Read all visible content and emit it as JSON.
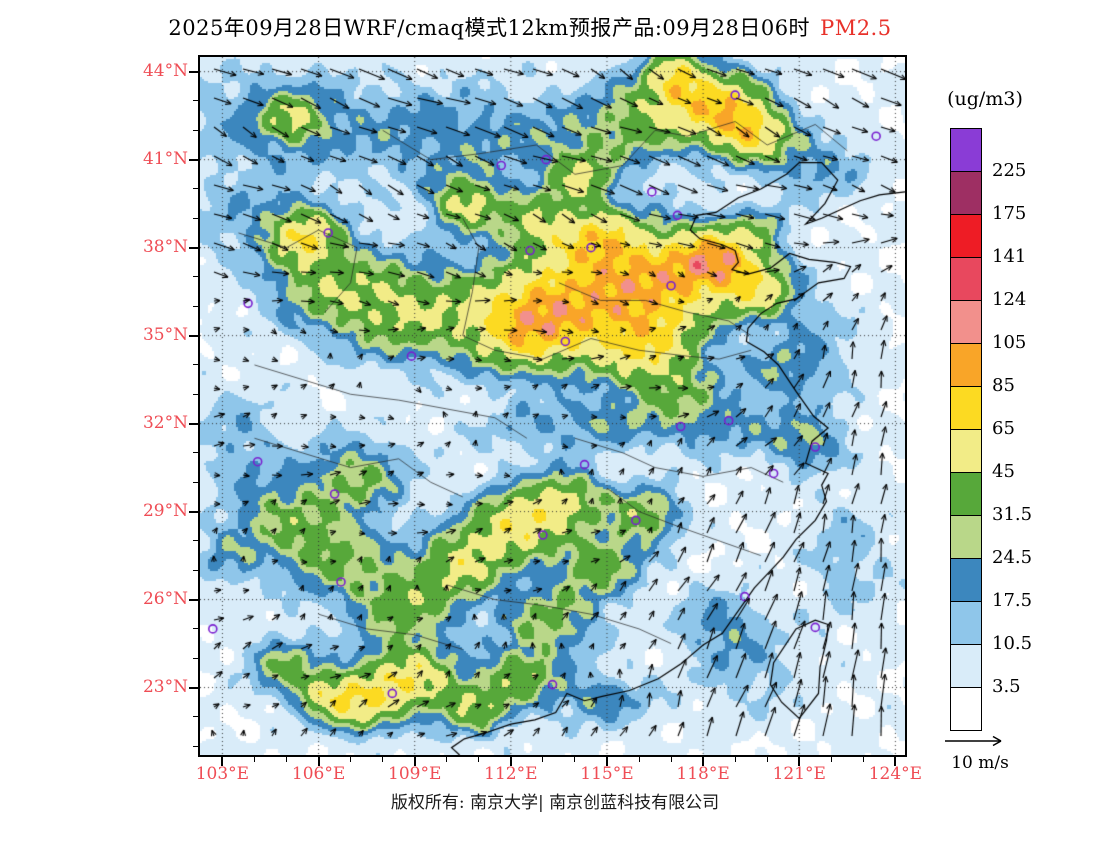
{
  "title": {
    "main": "2025年09月28日WRF/cmaq模式12km预报产品:09月28日06时",
    "pollutant": "PM2.5"
  },
  "colorbar": {
    "unit_label": "(ug/m3)",
    "boundary_labels": [
      "225",
      "175",
      "141",
      "124",
      "105",
      "85",
      "65",
      "45",
      "31.5",
      "24.5",
      "17.5",
      "10.5",
      "3.5"
    ]
  },
  "axes": {
    "lat_labels": [
      "44°N",
      "41°N",
      "38°N",
      "35°N",
      "32°N",
      "29°N",
      "26°N",
      "23°N"
    ],
    "lon_labels": [
      "103°E",
      "106°E",
      "109°E",
      "112°E",
      "115°E",
      "118°E",
      "121°E",
      "124°E"
    ]
  },
  "wind_legend": {
    "label": "10 m/s"
  },
  "footer": {
    "copyright": "版权所有: 南京大学| 南京创蓝科技有限公司"
  },
  "chart_data": {
    "type": "heatmap",
    "title": "2025年09月28日WRF/cmaq模式12km预报产品:09月28日06时 PM2.5",
    "variable": "PM2.5",
    "units": "ug/m3",
    "legend_position": "right",
    "grid": "dotted",
    "lon_range": [
      102.3,
      124.3
    ],
    "lat_range": [
      20.7,
      44.5
    ],
    "lon_tick_values": [
      103,
      106,
      109,
      112,
      115,
      118,
      121,
      124
    ],
    "lat_tick_values": [
      44,
      41,
      38,
      35,
      32,
      29,
      26,
      23
    ],
    "levels": [
      3.5,
      10.5,
      17.5,
      24.5,
      31.5,
      45,
      65,
      85,
      105,
      124,
      141,
      175,
      225
    ],
    "colors": [
      "#ffffff",
      "#d9ecf9",
      "#8fc6ea",
      "#3c87be",
      "#b9d789",
      "#57a83a",
      "#f2ec87",
      "#fcda22",
      "#f9a528",
      "#f2908c",
      "#e8485e",
      "#ee1c25",
      "#9e2f63",
      "#8a3cd6"
    ],
    "axis_label_color": "#ef4d55",
    "title_accent_color": "#e8312a",
    "marker_color": "#7a1fd0",
    "wind_reference_ms": 10,
    "pm25_sources": [
      [
        113.5,
        36.2,
        2.2,
        1.6,
        55
      ],
      [
        116.5,
        36.8,
        2.0,
        1.5,
        70
      ],
      [
        118.5,
        37.6,
        1.2,
        0.9,
        75
      ],
      [
        114.8,
        38.3,
        1.1,
        0.9,
        50
      ],
      [
        112.5,
        35.2,
        1.6,
        1.2,
        55
      ],
      [
        108.8,
        35.8,
        1.8,
        1.4,
        40
      ],
      [
        106.3,
        36.8,
        1.6,
        1.3,
        32
      ],
      [
        116.2,
        34.6,
        1.4,
        1.1,
        48
      ],
      [
        119.8,
        36.5,
        1.0,
        0.8,
        42
      ],
      [
        112.8,
        38.9,
        1.0,
        0.8,
        38
      ],
      [
        110.6,
        39.5,
        0.9,
        0.8,
        45
      ],
      [
        114.2,
        40.3,
        0.8,
        0.7,
        40
      ],
      [
        105.6,
        38.4,
        0.9,
        0.8,
        50
      ],
      [
        105.2,
        42.4,
        0.8,
        0.7,
        30
      ],
      [
        118.6,
        42.8,
        1.2,
        1.0,
        65
      ],
      [
        119.6,
        41.9,
        1.0,
        0.8,
        55
      ],
      [
        117.2,
        43.8,
        0.8,
        0.8,
        50
      ],
      [
        116.5,
        42.6,
        1.5,
        1.2,
        30
      ],
      [
        110.0,
        41.8,
        3.5,
        1.6,
        16
      ],
      [
        104.5,
        42.5,
        2.5,
        1.5,
        14
      ],
      [
        114.5,
        41.5,
        2.0,
        1.2,
        14
      ],
      [
        121.5,
        40.8,
        1.5,
        1.0,
        16
      ],
      [
        104.0,
        39.0,
        1.8,
        1.5,
        12
      ],
      [
        118.5,
        32.0,
        2.2,
        1.0,
        16
      ],
      [
        121.3,
        31.3,
        1.0,
        0.8,
        20
      ],
      [
        112.5,
        31.8,
        1.8,
        0.9,
        10
      ],
      [
        115.0,
        32.1,
        1.5,
        0.8,
        14
      ],
      [
        119.8,
        38.7,
        0.8,
        0.6,
        18
      ],
      [
        121.5,
        34.5,
        1.2,
        1.5,
        12
      ],
      [
        112.3,
        28.6,
        1.3,
        1.0,
        55
      ],
      [
        110.6,
        27.3,
        1.2,
        1.0,
        42
      ],
      [
        113.8,
        29.5,
        1.0,
        0.8,
        38
      ],
      [
        108.7,
        25.9,
        1.5,
        1.2,
        35
      ],
      [
        106.3,
        27.6,
        1.5,
        1.2,
        30
      ],
      [
        114.8,
        27.2,
        1.2,
        1.0,
        32
      ],
      [
        116.2,
        28.9,
        1.0,
        0.8,
        35
      ],
      [
        113.2,
        25.3,
        1.3,
        1.1,
        30
      ],
      [
        107.2,
        30.2,
        1.4,
        1.1,
        28
      ],
      [
        104.8,
        29.0,
        1.3,
        1.1,
        22
      ],
      [
        108.8,
        23.3,
        1.3,
        1.0,
        55
      ],
      [
        107.3,
        22.4,
        1.0,
        0.8,
        45
      ],
      [
        110.9,
        22.3,
        1.0,
        0.8,
        35
      ],
      [
        104.9,
        23.8,
        1.0,
        0.8,
        28
      ],
      [
        106.2,
        22.8,
        0.9,
        0.7,
        38
      ],
      [
        112.3,
        23.4,
        1.0,
        0.8,
        35
      ],
      [
        117.2,
        33.2,
        1.2,
        0.9,
        20
      ],
      [
        120.3,
        33.8,
        1.0,
        0.8,
        14
      ],
      [
        122.5,
        27.5,
        1.2,
        1.8,
        10
      ],
      [
        119.5,
        23.5,
        1.5,
        1.2,
        10
      ],
      [
        114.8,
        22.6,
        1.5,
        0.8,
        18
      ],
      [
        118.6,
        25.2,
        1.2,
        1.0,
        16
      ],
      [
        103.5,
        31.5,
        1.2,
        1.5,
        12
      ],
      [
        103.2,
        27.5,
        1.0,
        1.0,
        14
      ]
    ],
    "city_markers": [
      [
        111.7,
        40.8
      ],
      [
        116.4,
        39.9
      ],
      [
        117.2,
        39.1
      ],
      [
        114.5,
        38.0
      ],
      [
        112.6,
        37.9
      ],
      [
        117.0,
        36.7
      ],
      [
        113.7,
        34.8
      ],
      [
        108.9,
        34.3
      ],
      [
        103.8,
        36.1
      ],
      [
        106.3,
        38.5
      ],
      [
        104.1,
        30.7
      ],
      [
        106.5,
        29.6
      ],
      [
        114.3,
        30.6
      ],
      [
        117.3,
        31.9
      ],
      [
        118.8,
        32.1
      ],
      [
        121.5,
        31.2
      ],
      [
        120.2,
        30.3
      ],
      [
        115.9,
        28.7
      ],
      [
        113.0,
        28.2
      ],
      [
        106.7,
        26.6
      ],
      [
        102.7,
        25.0
      ],
      [
        108.3,
        22.8
      ],
      [
        113.3,
        23.1
      ],
      [
        119.3,
        26.1
      ],
      [
        121.5,
        25.05
      ],
      [
        123.4,
        41.8
      ],
      [
        119.0,
        43.2
      ],
      [
        113.1,
        41.0
      ]
    ],
    "coastline": [
      [
        124.3,
        39.9
      ],
      [
        123.5,
        39.8
      ],
      [
        122.9,
        39.6
      ],
      [
        122.3,
        39.3
      ],
      [
        121.7,
        39.0
      ],
      [
        121.2,
        38.8
      ],
      [
        121.8,
        39.5
      ],
      [
        122.2,
        40.3
      ],
      [
        121.7,
        40.9
      ],
      [
        121.0,
        40.9
      ],
      [
        120.6,
        40.5
      ],
      [
        119.8,
        40.0
      ],
      [
        119.1,
        39.7
      ],
      [
        118.4,
        39.2
      ],
      [
        117.8,
        39.1
      ],
      [
        117.6,
        38.6
      ],
      [
        117.9,
        38.3
      ],
      [
        118.6,
        38.1
      ],
      [
        119.0,
        37.9
      ],
      [
        119.1,
        37.5
      ],
      [
        118.9,
        37.25
      ],
      [
        119.4,
        37.1
      ],
      [
        120.1,
        37.3
      ],
      [
        120.7,
        37.8
      ],
      [
        121.3,
        37.6
      ],
      [
        122.1,
        37.5
      ],
      [
        122.6,
        37.35
      ],
      [
        122.4,
        36.95
      ],
      [
        121.6,
        36.8
      ],
      [
        120.9,
        36.25
      ],
      [
        120.3,
        36.1
      ],
      [
        119.8,
        35.75
      ],
      [
        119.4,
        35.25
      ],
      [
        119.35,
        34.8
      ],
      [
        119.9,
        34.45
      ],
      [
        120.35,
        34.0
      ],
      [
        120.9,
        33.1
      ],
      [
        121.45,
        32.25
      ],
      [
        121.9,
        31.85
      ],
      [
        121.4,
        31.4
      ],
      [
        121.2,
        30.65
      ],
      [
        121.9,
        30.3
      ],
      [
        121.7,
        29.9
      ],
      [
        121.85,
        29.35
      ],
      [
        121.5,
        28.7
      ],
      [
        120.9,
        28.05
      ],
      [
        120.5,
        27.45
      ],
      [
        119.9,
        26.75
      ],
      [
        119.6,
        26.4
      ],
      [
        119.25,
        25.85
      ],
      [
        118.6,
        24.85
      ],
      [
        118.0,
        24.45
      ],
      [
        117.3,
        23.8
      ],
      [
        116.6,
        23.3
      ],
      [
        115.7,
        22.9
      ],
      [
        114.85,
        22.7
      ],
      [
        114.3,
        22.55
      ],
      [
        113.75,
        22.8
      ],
      [
        113.4,
        22.15
      ],
      [
        112.75,
        21.9
      ],
      [
        112.0,
        21.75
      ],
      [
        111.2,
        21.45
      ],
      [
        110.55,
        21.25
      ],
      [
        110.15,
        20.95
      ],
      [
        110.4,
        20.7
      ]
    ],
    "islands": [
      [
        [
          121.9,
          25.15
        ],
        [
          121.5,
          25.3
        ],
        [
          120.9,
          25.0
        ],
        [
          120.2,
          23.85
        ],
        [
          120.1,
          23.1
        ],
        [
          120.45,
          22.5
        ],
        [
          121.0,
          21.95
        ],
        [
          121.6,
          22.8
        ],
        [
          121.65,
          23.7
        ],
        [
          121.85,
          24.6
        ],
        [
          121.9,
          25.15
        ]
      ]
    ],
    "borders": [
      [
        [
          103.5,
          38.5
        ],
        [
          105.0,
          38.0
        ],
        [
          106.0,
          38.6
        ],
        [
          107.2,
          38.0
        ],
        [
          107.0,
          36.8
        ],
        [
          106.2,
          35.8
        ]
      ],
      [
        [
          108.0,
          42.0
        ],
        [
          109.5,
          41.0
        ],
        [
          111.0,
          41.2
        ],
        [
          112.8,
          41.5
        ],
        [
          114.0,
          40.5
        ],
        [
          115.5,
          40.8
        ],
        [
          116.5,
          42.0
        ],
        [
          117.5,
          41.8
        ],
        [
          119.0,
          42.3
        ],
        [
          120.0,
          41.5
        ],
        [
          121.5,
          42.2
        ],
        [
          122.5,
          41.3
        ]
      ],
      [
        [
          110.5,
          39.0
        ],
        [
          111.0,
          38.0
        ],
        [
          110.8,
          36.5
        ],
        [
          110.5,
          35.0
        ],
        [
          111.5,
          34.5
        ],
        [
          113.0,
          34.2
        ],
        [
          114.5,
          34.9
        ],
        [
          116.0,
          34.5
        ],
        [
          117.5,
          34.3
        ],
        [
          118.5,
          34.2
        ],
        [
          119.5,
          34.5
        ]
      ],
      [
        [
          113.5,
          36.8
        ],
        [
          114.8,
          36.2
        ],
        [
          116.2,
          36.2
        ],
        [
          117.5,
          35.8
        ],
        [
          118.8,
          35.5
        ],
        [
          119.5,
          35.0
        ]
      ],
      [
        [
          104.0,
          34.0
        ],
        [
          105.5,
          33.5
        ],
        [
          107.0,
          33.0
        ],
        [
          108.5,
          32.8
        ],
        [
          110.0,
          32.5
        ],
        [
          111.5,
          32.2
        ],
        [
          112.5,
          31.5
        ]
      ],
      [
        [
          104.0,
          31.5
        ],
        [
          105.5,
          31.0
        ],
        [
          107.0,
          30.5
        ],
        [
          108.5,
          30.8
        ],
        [
          109.5,
          30.0
        ],
        [
          110.5,
          29.5
        ]
      ],
      [
        [
          110.0,
          26.5
        ],
        [
          111.5,
          26.0
        ],
        [
          113.0,
          25.8
        ],
        [
          114.5,
          25.5
        ],
        [
          116.0,
          25.0
        ],
        [
          117.0,
          24.5
        ]
      ],
      [
        [
          114.0,
          31.5
        ],
        [
          115.5,
          31.0
        ],
        [
          116.5,
          30.5
        ],
        [
          118.0,
          30.2
        ],
        [
          119.5,
          30.5
        ],
        [
          120.5,
          30.0
        ]
      ],
      [
        [
          115.0,
          29.8
        ],
        [
          116.0,
          29.0
        ],
        [
          117.2,
          28.5
        ],
        [
          118.5,
          28.0
        ],
        [
          119.8,
          27.5
        ]
      ],
      [
        [
          106.0,
          25.5
        ],
        [
          107.5,
          25.0
        ],
        [
          109.0,
          24.8
        ],
        [
          110.5,
          24.3
        ]
      ]
    ]
  }
}
